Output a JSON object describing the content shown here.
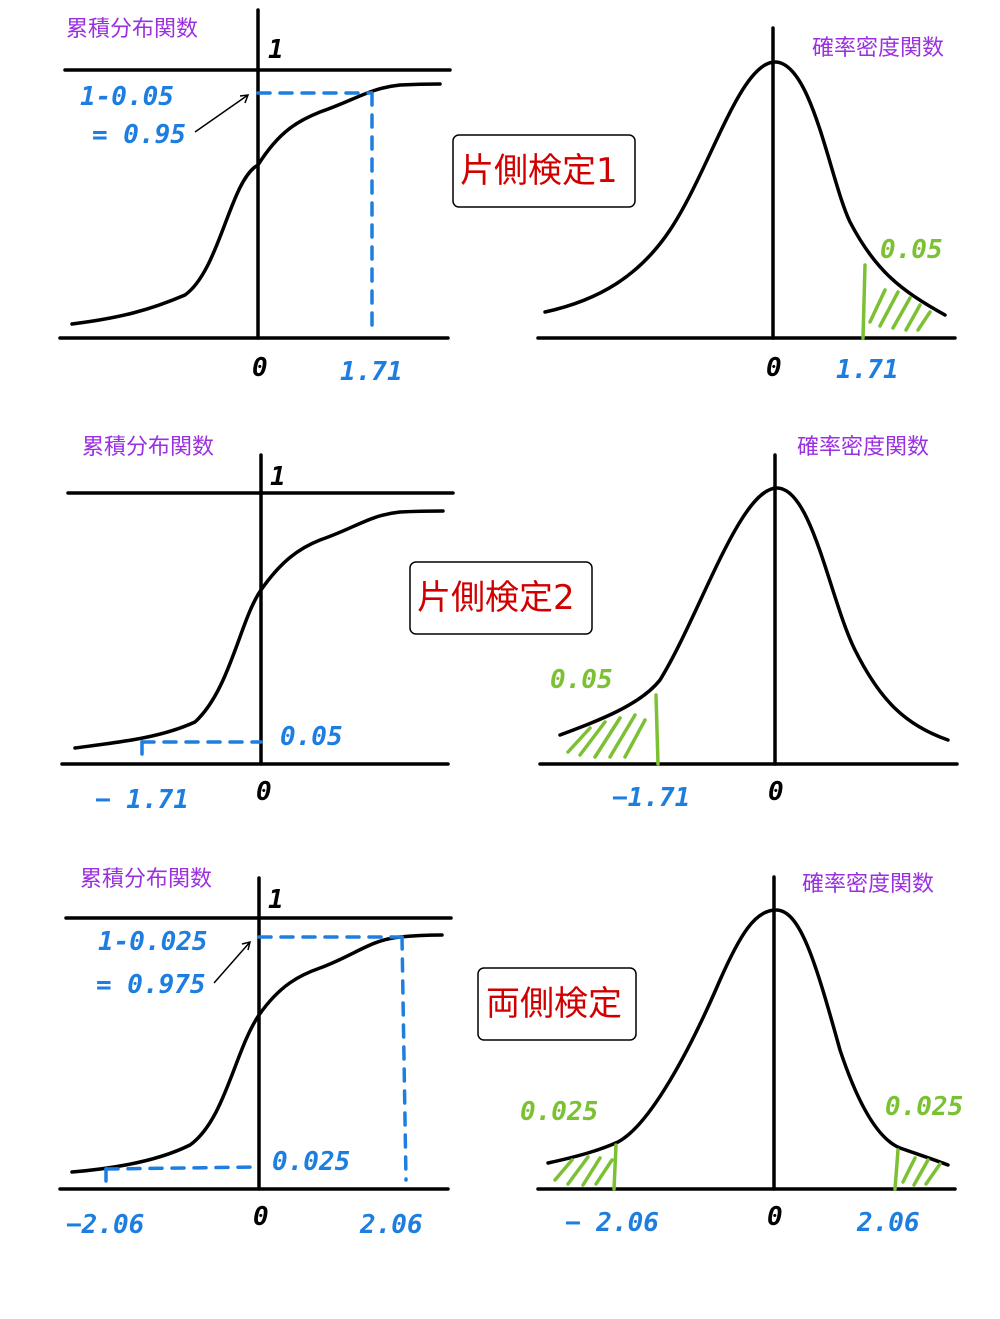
{
  "labels": {
    "cdf": "累積分布関数",
    "pdf": "確率密度関数",
    "one": "1",
    "zero": "0"
  },
  "row1": {
    "badge": "片側検定1",
    "cdf_note_line1": "1-0.05",
    "cdf_note_line2": "= 0.95",
    "cdf_x_label": "1.71",
    "pdf_area_label": "0.05",
    "pdf_x_label": "1.71"
  },
  "row2": {
    "badge": "片側検定2",
    "cdf_level_label": "0.05",
    "cdf_x_label": "− 1.71",
    "pdf_area_label": "0.05",
    "pdf_x_label": "−1.71"
  },
  "row3": {
    "badge": "両側検定",
    "cdf_note_line1": "1-0.025",
    "cdf_note_line2": "= 0.975",
    "cdf_level_label": "0.025",
    "cdf_x_left": "−2.06",
    "cdf_x_right": "2.06",
    "pdf_area_left": "0.025",
    "pdf_area_right": "0.025",
    "pdf_x_left": "− 2.06",
    "pdf_x_right": "2.06"
  },
  "colors": {
    "title": "#9b30e0",
    "badge_text": "#d10000",
    "annotation_blue": "#1e7ee0",
    "tail_green": "#7cc034"
  }
}
